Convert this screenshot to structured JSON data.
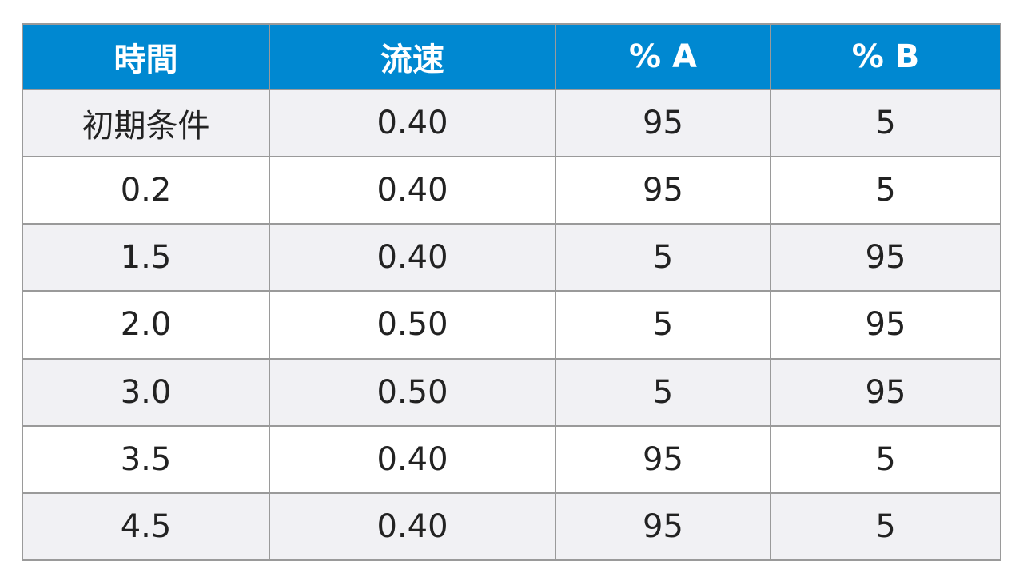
{
  "table": {
    "headers": [
      "時間",
      "流速",
      "% A",
      "% B"
    ],
    "rows": [
      [
        "初期条件",
        "0.40",
        "95",
        "5"
      ],
      [
        "0.2",
        "0.40",
        "95",
        "5"
      ],
      [
        "1.5",
        "0.40",
        "5",
        "95"
      ],
      [
        "2.0",
        "0.50",
        "5",
        "95"
      ],
      [
        "3.0",
        "0.50",
        "5",
        "95"
      ],
      [
        "3.5",
        "0.40",
        "95",
        "5"
      ],
      [
        "4.5",
        "0.40",
        "95",
        "5"
      ]
    ]
  },
  "colors": {
    "header_bg": "#0088d1",
    "header_text": "#ffffff",
    "row_odd_bg": "#f1f1f4",
    "row_even_bg": "#ffffff",
    "grid": "#9a9a9a"
  }
}
